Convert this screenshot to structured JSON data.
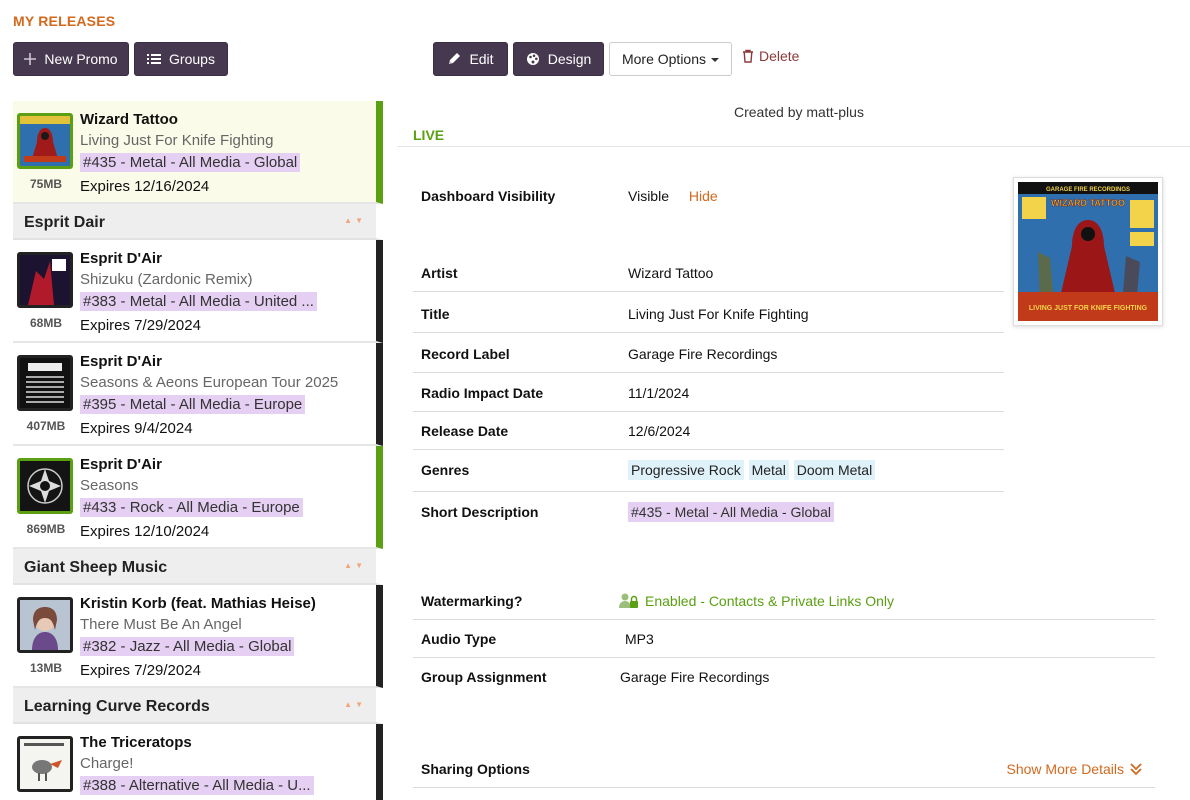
{
  "page_title": "MY RELEASES",
  "toolbar": {
    "new_promo": "New Promo",
    "groups": "Groups",
    "edit": "Edit",
    "design": "Design",
    "more_options": "More Options",
    "delete": "Delete"
  },
  "releases": {
    "item0": {
      "artist": "Wizard Tattoo",
      "title": "Living Just For Knife Fighting",
      "tag": "#435 - Metal - All Media - Global",
      "expires": "Expires 12/16/2024",
      "size": "75MB"
    },
    "group1": "Esprit Dair",
    "item1": {
      "artist": "Esprit D'Air",
      "title": "Shizuku (Zardonic Remix)",
      "tag": "#383 - Metal - All Media - United ...",
      "expires": "Expires 7/29/2024",
      "size": "68MB"
    },
    "item2": {
      "artist": "Esprit D'Air",
      "title": "Seasons & Aeons European Tour 2025",
      "tag": "#395 - Metal - All Media - Europe",
      "expires": "Expires 9/4/2024",
      "size": "407MB"
    },
    "item3": {
      "artist": "Esprit D'Air",
      "title": "Seasons",
      "tag": "#433 - Rock - All Media - Europe",
      "expires": "Expires 12/10/2024",
      "size": "869MB"
    },
    "group2": "Giant Sheep Music",
    "item4": {
      "artist": "Kristin Korb (feat. Mathias Heise)",
      "title": "There Must Be An Angel",
      "tag": "#382 - Jazz - All Media - Global",
      "expires": "Expires 7/29/2024",
      "size": "13MB"
    },
    "group3": "Learning Curve Records",
    "item5": {
      "artist": "The Triceratops",
      "title": "Charge!",
      "tag": "#388 - Alternative - All Media - U...",
      "expires": "",
      "size": ""
    }
  },
  "detail": {
    "created_by": "Created by matt-plus",
    "status": "LIVE",
    "dashboard_visibility": {
      "label": "Dashboard Visibility",
      "value": "Visible",
      "action": "Hide"
    },
    "artist": {
      "label": "Artist",
      "value": "Wizard Tattoo"
    },
    "title": {
      "label": "Title",
      "value": "Living Just For Knife Fighting"
    },
    "record_label": {
      "label": "Record Label",
      "value": "Garage Fire Recordings"
    },
    "radio_impact_date": {
      "label": "Radio Impact Date",
      "value": "11/1/2024"
    },
    "release_date": {
      "label": "Release Date",
      "value": "12/6/2024"
    },
    "genres": {
      "label": "Genres",
      "values": [
        "Progressive Rock",
        "Metal",
        "Doom Metal"
      ]
    },
    "short_description": {
      "label": "Short Description",
      "value": "#435 - Metal - All Media - Global"
    },
    "watermarking": {
      "label": "Watermarking?",
      "value": "Enabled - Contacts & Private Links Only"
    },
    "audio_type": {
      "label": "Audio Type",
      "value": "MP3"
    },
    "group_assignment": {
      "label": "Group Assignment",
      "value": "Garage Fire Recordings"
    },
    "sharing_options": {
      "label": "Sharing Options",
      "action": "Show More Details"
    },
    "cover_art": {
      "publisher": "GARAGE FIRE RECORDINGS",
      "band": "WIZARD TATTOO",
      "album": "LIVING JUST FOR KNIFE FIGHTING"
    }
  },
  "colors": {
    "accent": "#d2691e",
    "live": "#5aa012",
    "button_dark": "#46394f",
    "tag_purple": "#e5cff2",
    "genre_blue": "#dff1f9"
  }
}
